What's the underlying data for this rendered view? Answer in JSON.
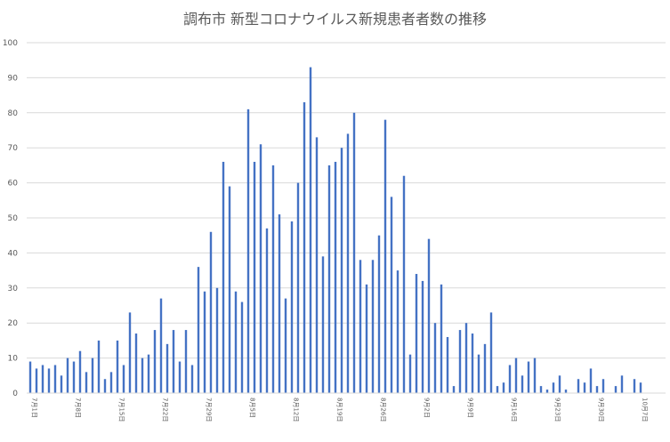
{
  "chart_data": {
    "type": "bar",
    "title": "調布市 新型コロナウイルス新規患者者数の推移",
    "xlabel": "",
    "ylabel": "",
    "ylim": [
      0,
      100
    ],
    "y_ticks": [
      0,
      10,
      20,
      30,
      40,
      50,
      60,
      70,
      80,
      90,
      100
    ],
    "grid": true,
    "bar_color": "#4472C4",
    "x_tick_labels": [
      "7月1日",
      "7月8日",
      "7月15日",
      "7月22日",
      "7月29日",
      "8月5日",
      "8月12日",
      "8月19日",
      "8月26日",
      "9月2日",
      "9月9日",
      "9月16日",
      "9月23日",
      "9月30日",
      "10月7日"
    ],
    "values": [
      9,
      7,
      8,
      7,
      8,
      5,
      10,
      9,
      12,
      6,
      10,
      15,
      4,
      6,
      15,
      8,
      23,
      17,
      10,
      11,
      18,
      27,
      14,
      18,
      9,
      18,
      8,
      36,
      29,
      46,
      30,
      66,
      59,
      29,
      26,
      81,
      66,
      71,
      47,
      65,
      51,
      27,
      49,
      60,
      83,
      93,
      73,
      39,
      65,
      66,
      70,
      74,
      80,
      38,
      31,
      38,
      45,
      78,
      56,
      35,
      62,
      11,
      34,
      32,
      44,
      20,
      31,
      16,
      2,
      18,
      20,
      17,
      11,
      14,
      23,
      2,
      3,
      8,
      10,
      5,
      9,
      10,
      2,
      1,
      3,
      5,
      1,
      0,
      4,
      3,
      7,
      2,
      4,
      0,
      2,
      5,
      0,
      4,
      3
    ]
  }
}
